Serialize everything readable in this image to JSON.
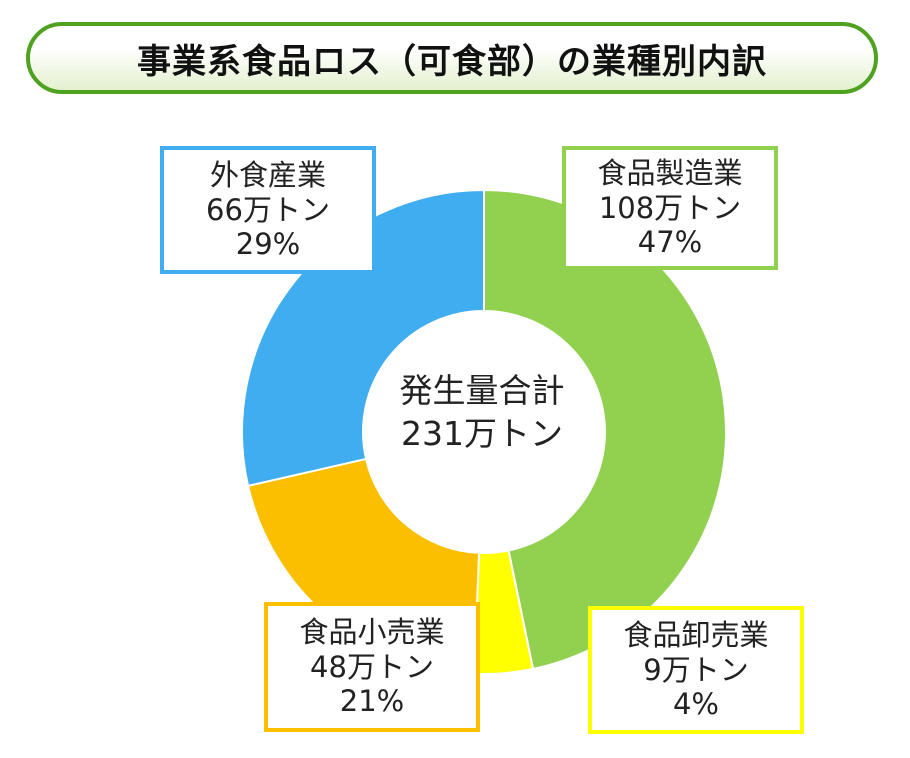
{
  "title": "事業系食品ロス（可食部）の業種別内訳",
  "center": {
    "line1": "発生量合計",
    "line2": "231万トン"
  },
  "chart_data": {
    "type": "pie",
    "title": "事業系食品ロス（可食部）の業種別内訳",
    "unit": "万トン",
    "total": 231,
    "slices": [
      {
        "name": "食品製造業",
        "value": 108,
        "value_label": "108万トン",
        "percent_label": "47%",
        "color": "#92d050"
      },
      {
        "name": "食品卸売業",
        "value": 9,
        "value_label": "9万トン",
        "percent_label": "4%",
        "color": "#ffff00"
      },
      {
        "name": "食品小売業",
        "value": 48,
        "value_label": "48万トン",
        "percent_label": "21%",
        "color": "#fbbf00"
      },
      {
        "name": "外食産業",
        "value": 66,
        "value_label": "66万トン",
        "percent_label": "29%",
        "color": "#3fadef"
      }
    ]
  }
}
